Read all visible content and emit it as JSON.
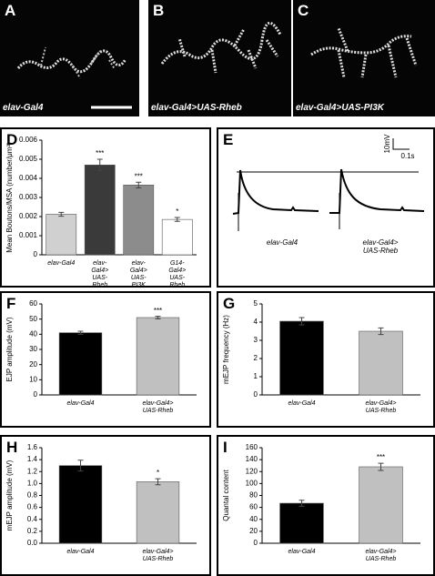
{
  "images": [
    {
      "letter": "A",
      "label": "elav-Gal4"
    },
    {
      "letter": "B",
      "label": "elav-Gal4>UAS-Rheb"
    },
    {
      "letter": "C",
      "label": "elav-Gal4>UAS-PI3K"
    }
  ],
  "trace_panel": {
    "letter": "E",
    "scale_y": "10mV",
    "scale_x": "0.1s",
    "labels": [
      "elav-Gal4",
      "elav-Gal4> UAS-Rheb"
    ]
  },
  "chart_data": [
    {
      "letter": "D",
      "type": "bar",
      "ylabel": "Mean Boutons/MSA (number/μm²)",
      "categories": [
        "elav-Gal4",
        "elav-Gal4> UAS-Rheb",
        "elav-Gal4> UAS-PI3K",
        "G14-Gal4> UAS-Rheb"
      ],
      "values": [
        0.00212,
        0.0047,
        0.00365,
        0.00185
      ],
      "errors": [
        0.0001,
        0.0003,
        0.00015,
        0.0001
      ],
      "colors": [
        "#d0d0d0",
        "#3a3a3a",
        "#8c8c8c",
        "#ffffff"
      ],
      "significance": [
        null,
        "***",
        "***",
        "*"
      ],
      "ylim": [
        0,
        0.006
      ],
      "yticks": [
        0,
        0.001,
        0.002,
        0.003,
        0.004,
        0.005,
        0.006
      ]
    },
    {
      "letter": "F",
      "type": "bar",
      "ylabel": "EJP amplitude (mV)",
      "categories": [
        "elav-Gal4",
        "elav-Gal4> UAS-Rheb"
      ],
      "values": [
        41,
        51
      ],
      "errors": [
        1,
        0.8
      ],
      "colors": [
        "#000000",
        "#c0c0c0"
      ],
      "significance": [
        null,
        "***"
      ],
      "ylim": [
        0,
        60
      ],
      "yticks": [
        0,
        10,
        20,
        30,
        40,
        50,
        60
      ]
    },
    {
      "letter": "G",
      "type": "bar",
      "ylabel": "mEJP frequency (Hz)",
      "categories": [
        "elav-Gal4",
        "elav-Gal4> UAS-Rheb"
      ],
      "values": [
        4.05,
        3.5
      ],
      "errors": [
        0.2,
        0.18
      ],
      "colors": [
        "#000000",
        "#c0c0c0"
      ],
      "significance": [
        null,
        null
      ],
      "ylim": [
        0,
        5
      ],
      "yticks": [
        0,
        1,
        2,
        3,
        4,
        5
      ]
    },
    {
      "letter": "H",
      "type": "bar",
      "ylabel": "mEJP amplitude (mV)",
      "categories": [
        "elav-Gal4",
        "elav-Gal4> UAS-Rheb"
      ],
      "values": [
        1.3,
        1.03
      ],
      "errors": [
        0.09,
        0.05
      ],
      "colors": [
        "#000000",
        "#c0c0c0"
      ],
      "significance": [
        null,
        "*"
      ],
      "ylim": [
        0,
        1.6
      ],
      "yticks": [
        {
          "value": 0,
          "label": "0.0"
        },
        {
          "value": 0.2,
          "label": "0.2"
        },
        {
          "value": 0.4,
          "label": "0.4"
        },
        {
          "value": 0.6,
          "label": "0.6"
        },
        {
          "value": 0.8,
          "label": "0.8"
        },
        {
          "value": 1,
          "label": "1.0"
        },
        {
          "value": 1.2,
          "label": "1.2"
        },
        {
          "value": 1.4,
          "label": "1.4"
        },
        {
          "value": 1.6,
          "label": "1.6"
        }
      ]
    },
    {
      "letter": "I",
      "type": "bar",
      "ylabel": "Quantal content",
      "categories": [
        "elav-Gal4",
        "elav-Gal4> UAS-Rheb"
      ],
      "values": [
        67,
        128
      ],
      "errors": [
        5,
        6
      ],
      "colors": [
        "#000000",
        "#c0c0c0"
      ],
      "significance": [
        null,
        "***"
      ],
      "ylim": [
        0,
        160
      ],
      "yticks": [
        0,
        20,
        40,
        60,
        80,
        100,
        120,
        140,
        160
      ]
    }
  ]
}
